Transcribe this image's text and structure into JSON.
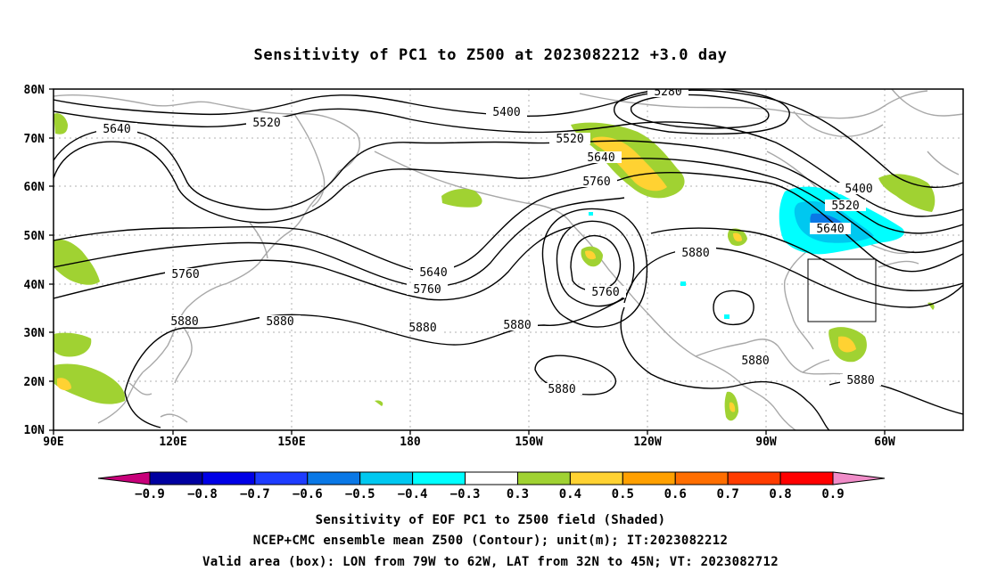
{
  "title": "Sensitivity of PC1 to Z500 at 2023082212 +3.0 day",
  "lat_ticks": [
    "80N",
    "70N",
    "60N",
    "50N",
    "40N",
    "30N",
    "20N",
    "10N"
  ],
  "lon_ticks": [
    "90E",
    "120E",
    "150E",
    "180",
    "150W",
    "120W",
    "90W",
    "60W"
  ],
  "contour_labels": {
    "c5280": "5280",
    "c5400a": "5400",
    "c5400b": "5400",
    "c5520a": "5520",
    "c5520b": "5520",
    "c5520c": "5520",
    "c5640a": "5640",
    "c5640b": "5640",
    "c5640c": "5640",
    "c5640d": "5640",
    "c5760a": "5760",
    "c5760b": "5760",
    "c5760c": "5760",
    "c5760d": "5760",
    "c5880a": "5880",
    "c5880b": "5880",
    "c5880c": "5880",
    "c5880d": "5880",
    "c5880e": "5880",
    "c5880f": "5880",
    "c5880g": "5880",
    "c5880h": "5880"
  },
  "colorbar": {
    "labels": [
      "−0.9",
      "−0.8",
      "−0.7",
      "−0.6",
      "−0.5",
      "−0.4",
      "−0.3",
      "0.3",
      "0.4",
      "0.5",
      "0.6",
      "0.7",
      "0.8",
      "0.9"
    ],
    "colors": [
      "#c8007a",
      "#0000a0",
      "#0000e6",
      "#1e3cff",
      "#0a78e6",
      "#00c8f0",
      "#00ffff",
      "#ffffff",
      "#a0d232",
      "#ffd232",
      "#ffa000",
      "#ff6e00",
      "#ff3c00",
      "#ff0000",
      "#f08cc8"
    ]
  },
  "box": {
    "lon_from": "79W",
    "lon_to": "62W",
    "lat_from": "32N",
    "lat_to": "45N"
  },
  "footer": {
    "line1": "Sensitivity of EOF PC1 to Z500 field (Shaded)",
    "line2": "NCEP+CMC ensemble mean Z500 (Contour); unit(m); IT:2023082212",
    "line3": "Valid area (box): LON from 79W to 62W, LAT from 32N to 45N; VT: 2023082712"
  }
}
